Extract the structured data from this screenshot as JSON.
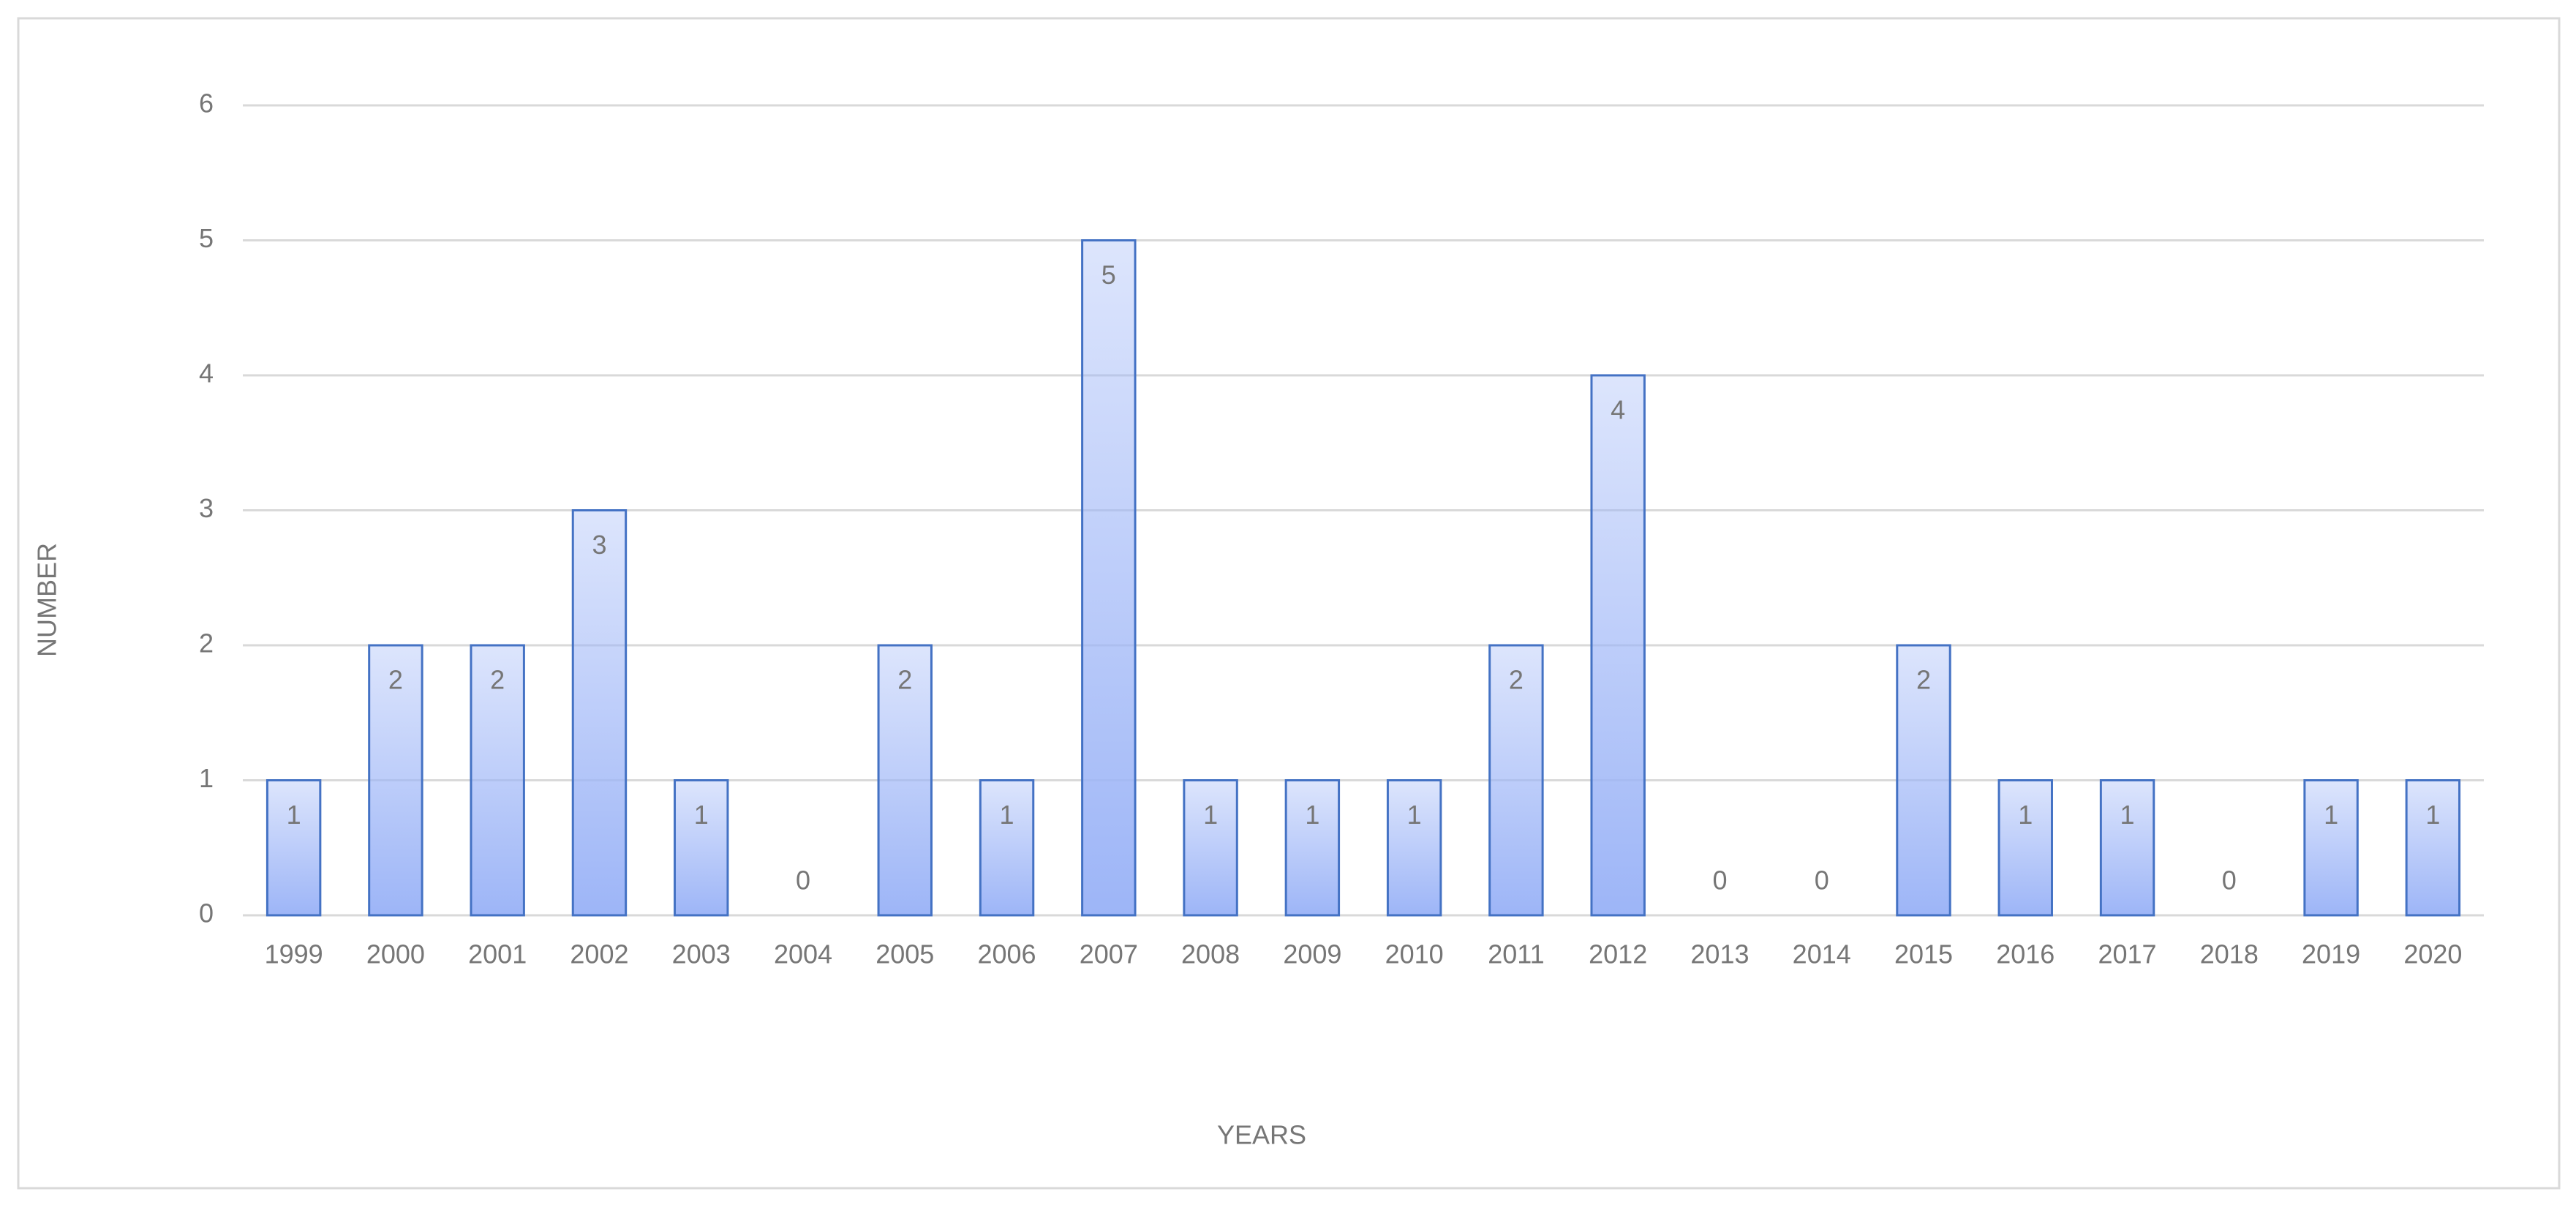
{
  "chart_data": {
    "type": "bar",
    "x_label": "YEARS",
    "y_label": "NUMBER",
    "categories": [
      "1999",
      "2000",
      "2001",
      "2002",
      "2003",
      "2004",
      "2005",
      "2006",
      "2007",
      "2008",
      "2009",
      "2010",
      "2011",
      "2012",
      "2013",
      "2014",
      "2015",
      "2016",
      "2017",
      "2018",
      "2019",
      "2020"
    ],
    "values": [
      1,
      2,
      2,
      3,
      1,
      0,
      2,
      1,
      5,
      1,
      1,
      1,
      2,
      4,
      0,
      0,
      2,
      1,
      1,
      0,
      1,
      1
    ],
    "color": "#9db5f7",
    "edge_color": "#4472c4",
    "ylim": [
      0,
      6
    ],
    "yticks": [
      0,
      1,
      2,
      3,
      4,
      5,
      6
    ],
    "grid": true
  }
}
